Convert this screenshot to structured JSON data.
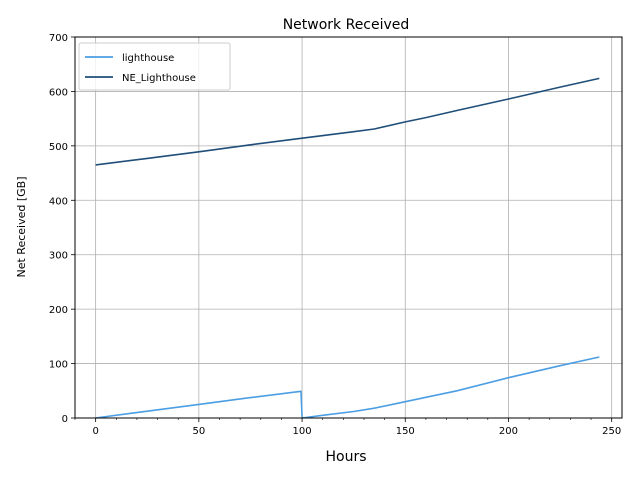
{
  "chart_data": {
    "type": "line",
    "title": "Network Received",
    "xlabel": "Hours",
    "ylabel": "Net Received [GB]",
    "xlim": [
      -10,
      255
    ],
    "ylim": [
      0,
      700
    ],
    "xticks": [
      0,
      50,
      100,
      150,
      200,
      250
    ],
    "yticks": [
      0,
      100,
      200,
      300,
      400,
      500,
      600,
      700
    ],
    "grid": true,
    "legend_position": "top-left",
    "series": [
      {
        "name": "lighthouse",
        "color": "#4b9ee3",
        "x": [
          0,
          25,
          50,
          75,
          99.5,
          100,
          110,
          125,
          135,
          150,
          160,
          175,
          200,
          225,
          244
        ],
        "y": [
          0,
          12.5,
          25,
          37.5,
          49,
          0,
          5,
          12,
          18,
          30,
          38,
          50,
          74,
          96,
          112
        ]
      },
      {
        "name": "NE_Lighthouse",
        "color": "#1f4e79",
        "x": [
          0,
          25,
          50,
          75,
          100,
          125,
          135,
          150,
          160,
          175,
          200,
          225,
          244
        ],
        "y": [
          465,
          477,
          489,
          502,
          514,
          526,
          531,
          544,
          552,
          565,
          586,
          608,
          624
        ]
      }
    ]
  }
}
